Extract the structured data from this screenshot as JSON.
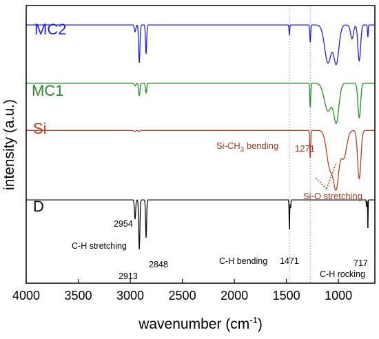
{
  "chart_data": {
    "type": "line",
    "xlabel": "wavenumber (cm",
    "xlabel_sup": "-1",
    "xlabel_end": ")",
    "ylabel": "intensity (a.u.)",
    "xlim": [
      4000,
      650
    ],
    "x_reversed": true,
    "x_ticks": [
      4000,
      3500,
      3000,
      2500,
      2000,
      1500,
      1000
    ],
    "reference_lines": [
      1471,
      1271
    ],
    "series": [
      {
        "name": "MC2",
        "color": "#2222cc",
        "baseline": 0.93,
        "peaks": [
          [
            2954,
            0.1,
            10
          ],
          [
            2913,
            0.55,
            9
          ],
          [
            2848,
            0.42,
            8
          ],
          [
            1471,
            0.15,
            5
          ],
          [
            1271,
            0.25,
            6
          ],
          [
            1100,
            0.55,
            45
          ],
          [
            1020,
            0.55,
            35
          ],
          [
            870,
            0.2,
            20
          ],
          [
            800,
            0.52,
            18
          ],
          [
            717,
            0.18,
            5
          ]
        ]
      },
      {
        "name": "MC1",
        "color": "#2a8a2a",
        "baseline": 0.72,
        "peaks": [
          [
            2954,
            0.04,
            10
          ],
          [
            2913,
            0.18,
            9
          ],
          [
            2848,
            0.14,
            8
          ],
          [
            1271,
            0.35,
            6
          ],
          [
            1100,
            0.4,
            50
          ],
          [
            1020,
            0.55,
            35
          ],
          [
            800,
            0.5,
            18
          ]
        ]
      },
      {
        "name": "Si",
        "color": "#b3402a",
        "baseline": 0.55,
        "peaks": [
          [
            2954,
            0.02,
            10
          ],
          [
            2913,
            0.02,
            9
          ],
          [
            1271,
            0.4,
            6
          ],
          [
            1080,
            0.55,
            45
          ],
          [
            1020,
            0.75,
            35
          ],
          [
            950,
            0.4,
            40
          ],
          [
            800,
            0.7,
            22
          ]
        ]
      },
      {
        "name": "D",
        "color": "#111111",
        "baseline": 0.3,
        "peaks": [
          [
            2954,
            0.28,
            8
          ],
          [
            2913,
            0.72,
            8
          ],
          [
            2848,
            0.55,
            7
          ],
          [
            1471,
            0.45,
            4
          ],
          [
            1460,
            0.12,
            4
          ],
          [
            717,
            0.45,
            3
          ],
          [
            730,
            0.1,
            4
          ]
        ]
      }
    ],
    "annotations": {
      "p2954": "2954",
      "p2913": "2913",
      "p2848": "2848",
      "ch_stretching": "C-H stretching",
      "ch_bending": "C-H bending",
      "p1471": "1471",
      "p717": "717",
      "ch_rocking": "C-H rocking",
      "sich3_a": "Si-CH",
      "sich3_sub": "3",
      "sich3_b": " bending",
      "p1271": "1271",
      "sio": "Si-O stretching"
    }
  }
}
